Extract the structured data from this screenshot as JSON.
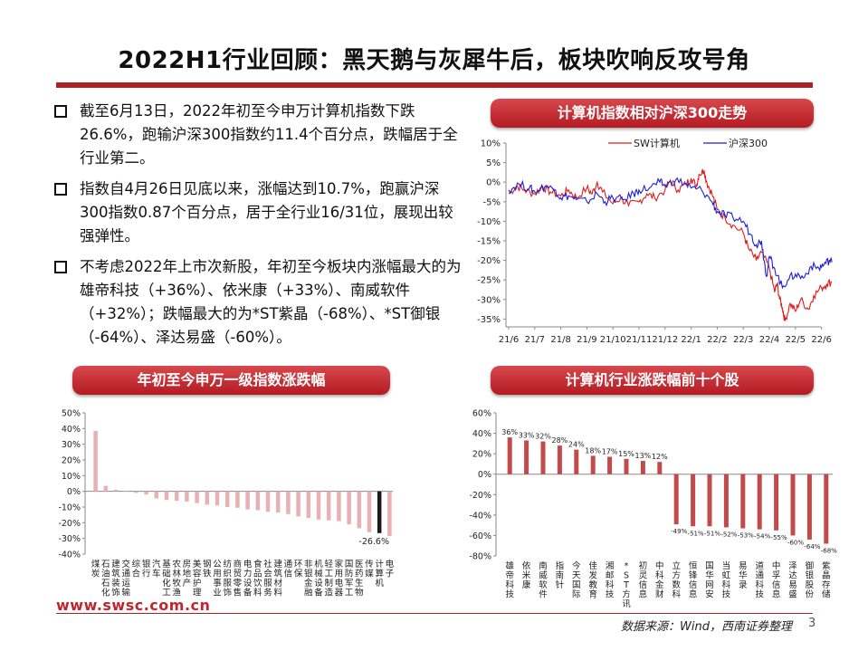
{
  "page": {
    "title": "2022H1行业回顾：黑天鹅与灰犀牛后，板块吹响反攻号角",
    "bullets": [
      "截至6月13日，2022年初至今申万计算机指数下跌26.6%，跑输沪深300指数约11.4个百分点，跌幅居于全行业第二。",
      "指数自4月26日见底以来，涨幅达到10.7%，跑赢沪深300指数0.87个百分点，居于全行业16/31位，展现出较强弹性。",
      "不考虑2022年上市次新股，年初至今板块内涨幅最大的为雄帝科技（+36%）、依米康（+33%）、南威软件（+32%）；跌幅最大的为*ST紫晶（-68%）、*ST御银（-64%）、泽达易盛（-60%）。"
    ],
    "footer_url": "www.swsc.com.cn",
    "source": "数据来源：Wind，西南证券整理",
    "page_number": "3",
    "colors": {
      "red": "#c0262c",
      "blue": "#1f1fd6",
      "bar_light": "#e9b1b3",
      "bar_dark": "#1a1a1a",
      "bar_red": "#c24a4a"
    }
  },
  "chart_data": [
    {
      "type": "line",
      "pill_title": "计算机指数相对沪深300走势",
      "x_ticks": [
        "21/6",
        "21/7",
        "21/8",
        "21/9",
        "21/10",
        "21/11",
        "21/12",
        "22/1",
        "22/2",
        "22/3",
        "22/4",
        "22/5",
        "22/6"
      ],
      "y_ticks": [
        "10%",
        "5%",
        "0%",
        "-5%",
        "-10%",
        "-15%",
        "-20%",
        "-25%",
        "-30%",
        "-35%"
      ],
      "ylim": [
        -37,
        10
      ],
      "series": [
        {
          "name": "SW计算机",
          "color": "#e21b1b",
          "keypoints": [
            [
              0,
              -3
            ],
            [
              0.3,
              -1
            ],
            [
              0.6,
              -2
            ],
            [
              1,
              -3
            ],
            [
              1.3,
              -1
            ],
            [
              1.6,
              -2.5
            ],
            [
              2,
              -3.5
            ],
            [
              2.3,
              -2
            ],
            [
              2.6,
              -4
            ],
            [
              3,
              -1.5
            ],
            [
              3.2,
              -3
            ],
            [
              3.4,
              0
            ],
            [
              3.6,
              -2.5
            ],
            [
              4,
              -5.5
            ],
            [
              4.3,
              -4
            ],
            [
              4.6,
              -6
            ],
            [
              5,
              -5
            ],
            [
              5.3,
              -3
            ],
            [
              5.6,
              -4
            ],
            [
              6,
              -2
            ],
            [
              6.2,
              0.5
            ],
            [
              6.5,
              -2
            ],
            [
              6.8,
              -0.5
            ],
            [
              7,
              1
            ],
            [
              7.2,
              -1
            ],
            [
              7.3,
              2
            ],
            [
              7.5,
              3
            ],
            [
              7.6,
              0
            ],
            [
              7.8,
              -3
            ],
            [
              8,
              -7
            ],
            [
              8.3,
              -9
            ],
            [
              8.6,
              -11
            ],
            [
              9,
              -13
            ],
            [
              9.2,
              -17
            ],
            [
              9.5,
              -20
            ],
            [
              9.7,
              -18
            ],
            [
              10,
              -22
            ],
            [
              10.2,
              -28
            ],
            [
              10.3,
              -26
            ],
            [
              10.4,
              -30
            ],
            [
              10.5,
              -32
            ],
            [
              10.6,
              -35.5
            ],
            [
              10.8,
              -31
            ],
            [
              11,
              -33
            ],
            [
              11.2,
              -30
            ],
            [
              11.5,
              -32.5
            ],
            [
              11.7,
              -29
            ],
            [
              12,
              -27
            ],
            [
              12.2,
              -26
            ],
            [
              12.4,
              -25.5
            ]
          ]
        },
        {
          "name": "沪深300",
          "color": "#1f1fd6",
          "keypoints": [
            [
              0,
              -2
            ],
            [
              0.4,
              -0.5
            ],
            [
              0.8,
              -1.5
            ],
            [
              1,
              -2.5
            ],
            [
              1.4,
              -1
            ],
            [
              1.8,
              -2
            ],
            [
              2,
              -4
            ],
            [
              2.3,
              -3.5
            ],
            [
              2.6,
              -4.5
            ],
            [
              3,
              -5
            ],
            [
              3.4,
              -3
            ],
            [
              3.7,
              -5
            ],
            [
              4,
              -4
            ],
            [
              4.4,
              -4.5
            ],
            [
              4.8,
              -3
            ],
            [
              5,
              -2
            ],
            [
              5.4,
              -1.5
            ],
            [
              5.8,
              0
            ],
            [
              6,
              -1
            ],
            [
              6.4,
              0.5
            ],
            [
              6.8,
              -0.5
            ],
            [
              7,
              -1.5
            ],
            [
              7.4,
              -2
            ],
            [
              7.8,
              -5
            ],
            [
              8,
              -7.5
            ],
            [
              8.3,
              -8.5
            ],
            [
              8.6,
              -9
            ],
            [
              9,
              -10
            ],
            [
              9.3,
              -13.5
            ],
            [
              9.5,
              -16
            ],
            [
              9.7,
              -15
            ],
            [
              9.8,
              -20
            ],
            [
              9.9,
              -24
            ],
            [
              10,
              -19
            ],
            [
              10.2,
              -22
            ],
            [
              10.5,
              -27
            ],
            [
              10.7,
              -25
            ],
            [
              11,
              -23.5
            ],
            [
              11.3,
              -24.5
            ],
            [
              11.6,
              -21.5
            ],
            [
              11.9,
              -22
            ],
            [
              12.1,
              -21
            ],
            [
              12.3,
              -20
            ],
            [
              12.4,
              -20.5
            ]
          ]
        }
      ]
    },
    {
      "type": "bar",
      "pill_title": "年初至今申万一级指数涨跌幅",
      "categories": [
        "煤炭",
        "石油石化",
        "建筑装饰",
        "交通运输",
        "综合",
        "银行",
        "汽车",
        "基础化工",
        "农林牧渔",
        "房地产",
        "美容护理",
        "钢铁",
        "公用事业",
        "纺织服饰",
        "商贸零售",
        "电力设备",
        "食品饮料",
        "社会服务",
        "建筑材料",
        "通信",
        "环保",
        "非银金融",
        "机械设备",
        "轻工制造",
        "家用电器",
        "国防军工",
        "医药生物",
        "传媒",
        "计算机",
        "电子"
      ],
      "categories_display": [
        "煤\n炭",
        "石\n油\n石\n化",
        "建\n筑\n装\n饰",
        "交\n通\n运\n输",
        "综\n合",
        "银\n行",
        "汽\n车",
        "基\n础\n化\n工",
        "农\n林\n牧\n渔",
        "房\n地\n产",
        "美\n容\n护\n理",
        "钢\n铁",
        "公\n用\n事\n业",
        "纺\n织\n服\n饰",
        "商\n贸\n零\n售",
        "电\n力\n设\n备",
        "食\n品\n饮\n料",
        "社\n会\n服\n务",
        "建\n筑\n材\n料",
        "通\n信",
        "环\n保",
        "非\n银\n金\n融",
        "机\n械\n设\n备",
        "轻\n工\n制\n造",
        "家\n用\n电\n器",
        "国\n防\n军\n工",
        "医\n药\n生\n物",
        "传\n媒",
        "计\n算\n机",
        "电\n子"
      ],
      "values": [
        38.5,
        3.5,
        1.0,
        0.5,
        -1.0,
        -2.0,
        -4.5,
        -5.5,
        -6.0,
        -6.5,
        -7.5,
        -8.5,
        -9.0,
        -10.0,
        -10.5,
        -11.5,
        -12.0,
        -13.0,
        -13.5,
        -14.5,
        -16.0,
        -17.0,
        -18.0,
        -18.5,
        -19.0,
        -21.0,
        -23.5,
        -26.0,
        -26.6,
        -28.5
      ],
      "highlight": "计算机",
      "data_label": "-26.6%",
      "y_ticks": [
        "50%",
        "40%",
        "30%",
        "20%",
        "10%",
        "0%",
        "-10%",
        "-20%",
        "-30%",
        "-40%"
      ],
      "ylim": [
        -40,
        50
      ]
    },
    {
      "type": "bar",
      "pill_title": "计算机行业涨跌幅前十个股",
      "categories": [
        "雄帝科技",
        "依米康",
        "南威软件",
        "指南针",
        "今天国际",
        "佳发教育",
        "湘邮科技",
        "*ST方讯",
        "初灵信息",
        "中科金财",
        "立方数科",
        "恒锋信息",
        "国华网安",
        "当虹科技",
        "易华录",
        "道通科技",
        "中孚信息",
        "泽达易盛",
        "御银股份",
        "紫晶存储"
      ],
      "categories_display": [
        "雄\n帝\n科\n技",
        "依\n米\n康",
        "南\n威\n软\n件",
        "指\n南\n针",
        "今\n天\n国\n际",
        "佳\n发\n教\n育",
        "湘\n邮\n科\n技",
        "*\nS\nT\n方\n讯",
        "初\n灵\n信\n息",
        "中\n科\n金\n财",
        "立\n方\n数\n科",
        "恒\n锋\n信\n息",
        "国\n华\n网\n安",
        "当\n虹\n科\n技",
        "易\n华\n录",
        "道\n通\n科\n技",
        "中\n孚\n信\n息",
        "泽\n达\n易\n盛",
        "御\n银\n股\n份",
        "紫\n晶\n存\n储"
      ],
      "values": [
        36,
        33,
        32,
        28,
        24,
        18,
        17,
        15,
        13,
        12,
        -49,
        -51,
        -51,
        -52,
        -53,
        -54,
        -55,
        -60,
        -64,
        -68
      ],
      "labels": [
        "36%",
        "33%",
        "32%",
        "28%",
        "24%",
        "18%",
        "17%",
        "15%",
        "13%",
        "12%",
        "-49%",
        "-51%",
        "-51%",
        "-52%",
        "-53%",
        "-54%",
        "-55%",
        "-60%",
        "-64%",
        "-68%"
      ],
      "y_ticks": [
        "60%",
        "40%",
        "20%",
        "0%",
        "-20%",
        "-40%",
        "-60%",
        "-80%"
      ],
      "ylim": [
        -80,
        60
      ]
    }
  ]
}
